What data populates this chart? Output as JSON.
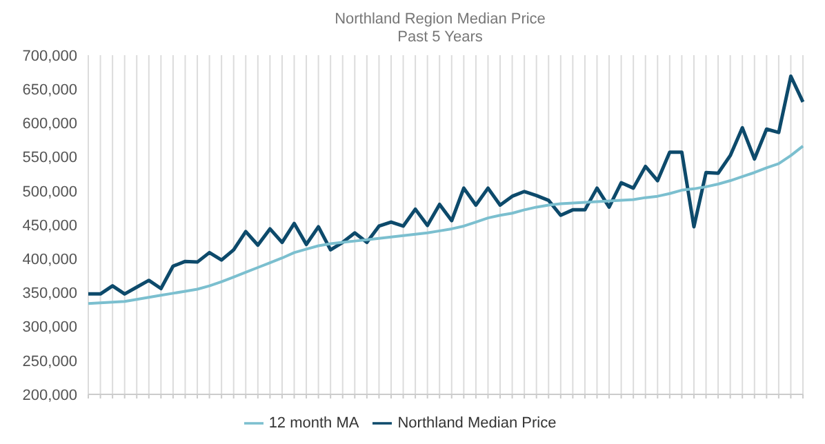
{
  "chart_data": {
    "type": "line",
    "title": "Northland Region Median Price",
    "subtitle": "Past 5 Years",
    "categories": [
      null,
      null,
      null,
      null,
      null,
      null,
      null,
      null,
      null,
      null,
      null,
      null,
      null,
      null,
      null,
      null,
      null,
      null,
      null,
      null,
      null,
      null,
      null,
      null,
      null,
      null,
      null,
      null,
      null,
      null,
      null,
      null,
      null,
      null,
      null,
      null,
      null,
      null,
      null,
      null,
      null,
      null,
      null,
      null,
      null,
      null,
      null,
      null,
      null,
      null,
      null,
      null,
      null,
      null,
      null,
      null,
      null,
      null,
      null,
      null
    ],
    "series": [
      {
        "name": "Northland Median Price",
        "color": "#0d4a6b",
        "values": [
          348000,
          348000,
          360000,
          348000,
          358000,
          368000,
          356000,
          389000,
          396000,
          395000,
          409000,
          398000,
          413000,
          440000,
          420000,
          444000,
          424000,
          452000,
          421000,
          447000,
          413000,
          424000,
          438000,
          424000,
          448000,
          454000,
          448000,
          473000,
          449000,
          480000,
          456000,
          504000,
          479000,
          504000,
          479000,
          492000,
          499000,
          493000,
          486000,
          464000,
          472000,
          472000,
          504000,
          476000,
          512000,
          504000,
          536000,
          515000,
          557000,
          557000,
          447000,
          527000,
          526000,
          552000,
          593000,
          547000,
          591000,
          586000,
          669000,
          631000
        ]
      },
      {
        "name": "12 month MA",
        "color": "#7bbfcf",
        "values": [
          334000,
          335000,
          336000,
          337000,
          340000,
          343000,
          346000,
          349000,
          352000,
          355000,
          360000,
          366000,
          373000,
          380000,
          387000,
          394000,
          401000,
          409000,
          414000,
          419000,
          422000,
          424000,
          426000,
          428000,
          430000,
          432000,
          434000,
          436000,
          438000,
          441000,
          444000,
          448000,
          454000,
          460000,
          464000,
          467000,
          472000,
          476000,
          479000,
          481000,
          482000,
          483000,
          484000,
          485000,
          486000,
          487000,
          490000,
          492000,
          496000,
          501000,
          503000,
          506000,
          510000,
          515000,
          521000,
          527000,
          534000,
          540000,
          552000,
          566000
        ]
      }
    ],
    "ylim": [
      200000,
      700000
    ],
    "yticks": [
      {
        "value": 200000,
        "label": "200,000"
      },
      {
        "value": 250000,
        "label": "250,000"
      },
      {
        "value": 300000,
        "label": "300,000"
      },
      {
        "value": 350000,
        "label": "350,000"
      },
      {
        "value": 400000,
        "label": "400,000"
      },
      {
        "value": 450000,
        "label": "450,000"
      },
      {
        "value": 500000,
        "label": "500,000"
      },
      {
        "value": 550000,
        "label": "550,000"
      },
      {
        "value": 600000,
        "label": "600,000"
      },
      {
        "value": 650000,
        "label": "650,000"
      },
      {
        "value": 700000,
        "label": "700,000"
      }
    ],
    "grid": "x",
    "legend": "bottom",
    "marker": "none",
    "line_style": "solid"
  }
}
